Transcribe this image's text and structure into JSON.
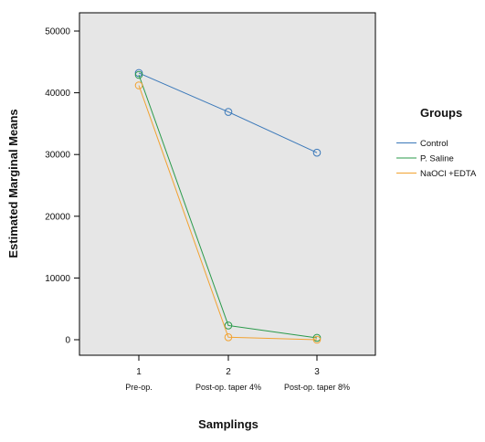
{
  "chart_data": {
    "type": "line",
    "xlabel": "Samplings",
    "ylabel": "Estimated Marginal Means",
    "ylim": [
      0,
      50000
    ],
    "yticks": [
      0,
      10000,
      20000,
      30000,
      40000,
      50000
    ],
    "x": [
      1,
      2,
      3
    ],
    "x_tick_labels": [
      "1",
      "2",
      "3"
    ],
    "x_sublabels": [
      "Pre-op.",
      "Post-op. taper 4%",
      "Post-op. taper 8%"
    ],
    "legend_title": "Groups",
    "legend_position": "right",
    "grid": false,
    "plot_background": "#e6e6e6",
    "series": [
      {
        "name": "Control",
        "values": [
          43200,
          36900,
          30300
        ],
        "color": "#3a78b9"
      },
      {
        "name": "P. Saline",
        "values": [
          42900,
          2300,
          300
        ],
        "color": "#2a9a4a"
      },
      {
        "name": "NaOCl +EDTA",
        "values": [
          41200,
          400,
          0
        ],
        "color": "#f2a230"
      }
    ]
  }
}
